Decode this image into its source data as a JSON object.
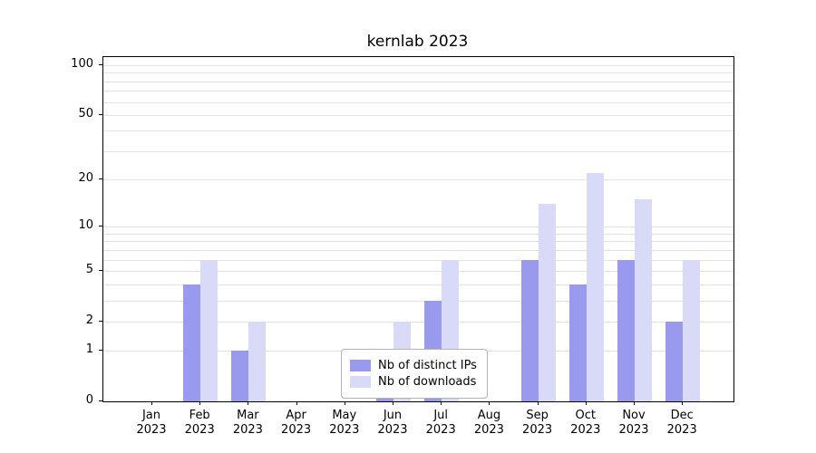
{
  "chart_data": {
    "type": "bar",
    "title": "kernlab 2023",
    "categories": [
      "Jan",
      "Feb",
      "Mar",
      "Apr",
      "May",
      "Jun",
      "Jul",
      "Aug",
      "Sep",
      "Oct",
      "Nov",
      "Dec"
    ],
    "year_label": "2023",
    "series": [
      {
        "name": "Nb of distinct IPs",
        "color": "#9999ee",
        "values": [
          0,
          4,
          1,
          0,
          0,
          1,
          3,
          0,
          6,
          4,
          6,
          2
        ]
      },
      {
        "name": "Nb of downloads",
        "color": "#d9daf8",
        "values": [
          0,
          6,
          2,
          0,
          0,
          2,
          6,
          0,
          14,
          22,
          15,
          6
        ]
      }
    ],
    "yticks": [
      0,
      1,
      2,
      5,
      10,
      20,
      50,
      100
    ],
    "gridlines": [
      1,
      2,
      3,
      4,
      5,
      6,
      7,
      8,
      9,
      10,
      20,
      30,
      40,
      50,
      60,
      70,
      80,
      90,
      100
    ],
    "ylim": [
      0,
      112
    ],
    "scale": "log1p",
    "grid": true,
    "legend_position": "bottom-center"
  }
}
